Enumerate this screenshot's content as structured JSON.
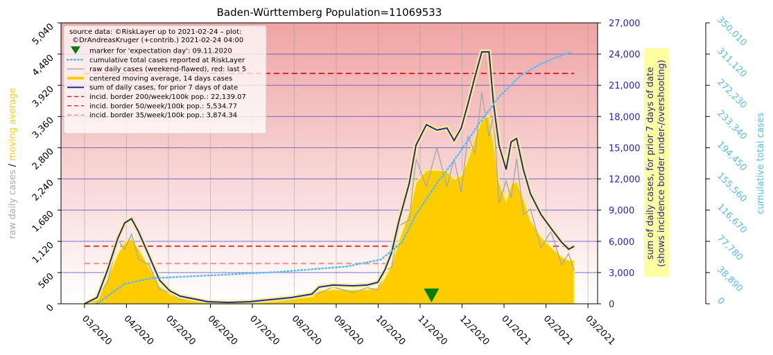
{
  "chart_data": {
    "type": "line",
    "title": "Baden-Württemberg Population=11069533",
    "source": [
      "source data: ©RiskLayer up to 2021-02-24 – plot:",
      "©DrAndreasKruger (+contrib.) 2021-02-24 04:00"
    ],
    "ylabel": [
      "raw daily cases",
      "/",
      "moving average"
    ],
    "y2label": [
      "sum of daily cases, for prior 7 days of date",
      "(shows incidence border under-/overshooting)"
    ],
    "y3label": "cumulative total cases",
    "xlim": [
      -0.56,
      12.23
    ],
    "xticks": [
      {
        "value": 0,
        "label": "03/2020"
      },
      {
        "value": 1,
        "label": "04/2020"
      },
      {
        "value": 2,
        "label": "05/2020"
      },
      {
        "value": 3,
        "label": "06/2020"
      },
      {
        "value": 4,
        "label": "07/2020"
      },
      {
        "value": 5,
        "label": "08/2020"
      },
      {
        "value": 6,
        "label": "09/2020"
      },
      {
        "value": 7,
        "label": "10/2020"
      },
      {
        "value": 8,
        "label": "11/2020"
      },
      {
        "value": 9,
        "label": "12/2020"
      },
      {
        "value": 10,
        "label": "01/2021"
      },
      {
        "value": 11,
        "label": "02/2021"
      },
      {
        "value": 12,
        "label": "03/2021"
      }
    ],
    "ylim": [
      0,
      5040
    ],
    "yticks": [
      0,
      560,
      {
        "value": 1120,
        "label": "1,120"
      },
      {
        "value": 1680,
        "label": "1,680"
      },
      {
        "value": 2240,
        "label": "2,240"
      },
      {
        "value": 2800,
        "label": "2,800"
      },
      {
        "value": 3360,
        "label": "3,360"
      },
      {
        "value": 3920,
        "label": "3,920"
      },
      {
        "value": 4480,
        "label": "4,480"
      },
      {
        "value": 5040,
        "label": "5,040"
      }
    ],
    "y2lim": [
      0,
      27000
    ],
    "y2ticks": [
      0,
      {
        "value": 3000,
        "label": "3,000"
      },
      {
        "value": 6000,
        "label": "6,000"
      },
      {
        "value": 9000,
        "label": "9,000"
      },
      {
        "value": 12000,
        "label": "12,000"
      },
      {
        "value": 15000,
        "label": "15,000"
      },
      {
        "value": 18000,
        "label": "18,000"
      },
      {
        "value": 21000,
        "label": "21,000"
      },
      {
        "value": 24000,
        "label": "24,000"
      },
      {
        "value": 27000,
        "label": "27,000"
      }
    ],
    "y3lim": [
      0,
      350010
    ],
    "y3ticks": [
      0,
      {
        "value": 38890,
        "label": "38,890"
      },
      {
        "value": 77780,
        "label": "77,780"
      },
      {
        "value": 116670,
        "label": "116,670"
      },
      {
        "value": 155560,
        "label": "155,560"
      },
      {
        "value": 194450,
        "label": "194,450"
      },
      {
        "value": 233340,
        "label": "233,340"
      },
      {
        "value": 272230,
        "label": "272,230"
      },
      {
        "value": 311120,
        "label": "311,120"
      },
      {
        "value": 350010,
        "label": "350,010"
      }
    ],
    "grid": true,
    "marker": {
      "name": "marker for 'expectation day': 09.11.2020",
      "x": 8.27,
      "color": "#008000"
    },
    "x": [
      0,
      0.3,
      0.55,
      0.79,
      0.96,
      1.12,
      1.29,
      1.54,
      1.79,
      2.03,
      2.28,
      2.61,
      2.94,
      3.44,
      3.93,
      4.43,
      4.93,
      5.42,
      5.59,
      5.92,
      6.41,
      6.74,
      6.99,
      7.16,
      7.32,
      7.49,
      7.74,
      7.9,
      8.15,
      8.4,
      8.64,
      8.81,
      8.98,
      9.14,
      9.31,
      9.47,
      9.64,
      9.75,
      9.88,
      10.05,
      10.17,
      10.3,
      10.46,
      10.63,
      10.88,
      11.12,
      11.37,
      11.54,
      11.67
    ],
    "series": [
      {
        "name": "cumulative total cases reported at RiskLayer",
        "color": "#55bbff",
        "axis": "y3",
        "style": "dotted",
        "x": [
          0.3,
          0.96,
          1.62,
          2.94,
          4.6,
          6.25,
          7.07,
          7.57,
          7.9,
          8.4,
          8.89,
          9.39,
          9.88,
          10.38,
          10.88,
          11.37,
          11.62
        ],
        "values": [
          0,
          25000,
          31900,
          35300,
          39600,
          46500,
          55200,
          76700,
          111200,
          150000,
          184500,
          223300,
          257700,
          283600,
          299100,
          309500,
          313800
        ]
      },
      {
        "name": "raw daily cases (weekend-flawed), red: last 5",
        "color": "#aaaaaa",
        "style": "line",
        "values": [
          0,
          120,
          380,
          1150,
          980,
          1250,
          800,
          700,
          260,
          200,
          80,
          90,
          20,
          30,
          20,
          80,
          70,
          160,
          190,
          300,
          200,
          290,
          250,
          600,
          650,
          1400,
          1500,
          2600,
          2100,
          2800,
          2100,
          2600,
          2000,
          3000,
          2700,
          3800,
          3000,
          3400,
          1800,
          2200,
          1900,
          2600,
          1600,
          1700,
          1000,
          1300,
          700,
          900,
          600
        ]
      },
      {
        "name": "centered moving average, 14 days cases",
        "color": "#ffcc00",
        "style": "area",
        "values": [
          0,
          90,
          460,
          890,
          1110,
          1170,
          990,
          660,
          320,
          180,
          100,
          70,
          30,
          20,
          30,
          60,
          90,
          130,
          230,
          260,
          250,
          260,
          290,
          470,
          700,
          1130,
          1650,
          2180,
          2400,
          2400,
          2380,
          2240,
          2300,
          2600,
          3000,
          3300,
          3380,
          2900,
          2200,
          1850,
          2150,
          2200,
          1900,
          1500,
          1200,
          1020,
          850,
          780,
          790
        ]
      },
      {
        "name": "sum of daily cases, for prior 7 days of date",
        "color": "#1a2a9e",
        "axis": "y2",
        "style": "halo",
        "values": [
          0,
          600,
          3260,
          6250,
          7780,
          8180,
          6900,
          4590,
          2260,
          1260,
          730,
          470,
          200,
          130,
          200,
          400,
          600,
          930,
          1600,
          1800,
          1730,
          1800,
          2060,
          3260,
          4920,
          7910,
          11570,
          15230,
          17220,
          16690,
          16890,
          15690,
          16890,
          19220,
          21880,
          24210,
          24210,
          19220,
          15230,
          12900,
          15560,
          15890,
          12900,
          10570,
          8580,
          7250,
          5920,
          5250,
          5520
        ]
      }
    ],
    "hlines": [
      {
        "name": "incid. border 200/week/100k pop.: 22,139.07",
        "value": 22139.07,
        "axis": "y2",
        "color": "#dd2222",
        "x": [
          0,
          11.67
        ]
      },
      {
        "name": "incid. border  50/week/100k pop.: 5,534.77",
        "value": 5534.77,
        "axis": "y2",
        "color": "#dd3333",
        "x": [
          0,
          11.67
        ]
      },
      {
        "name": "incid. border  35/week/100k pop.: 3,874.34",
        "value": 3874.34,
        "axis": "y2",
        "color": "#ff8888",
        "x": [
          0,
          11.67
        ]
      }
    ]
  }
}
